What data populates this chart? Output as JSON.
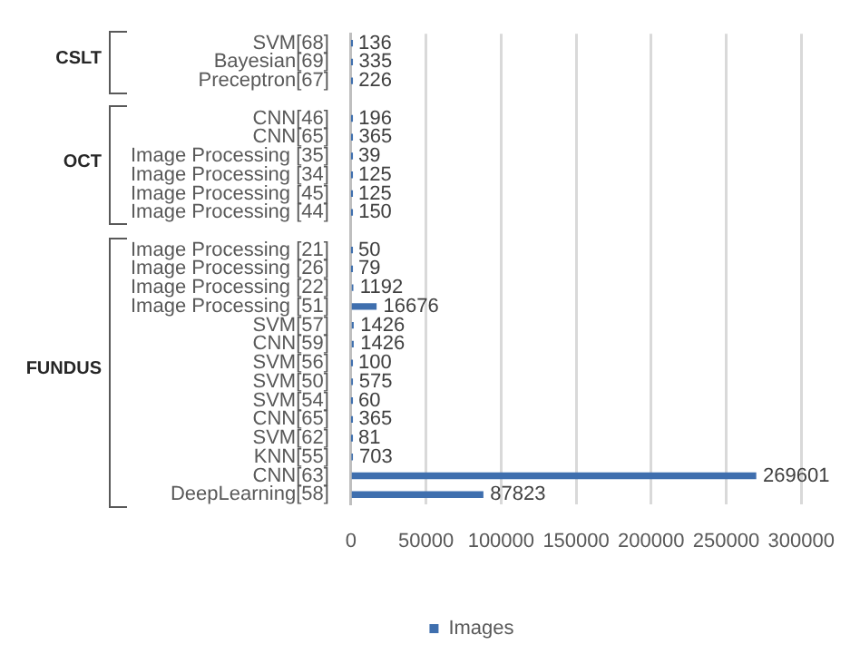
{
  "chart_data": {
    "type": "bar",
    "orientation": "horizontal",
    "categories": [
      "SVM[68]",
      "Bayesian[69]",
      "Preceptron[67]",
      null,
      "CNN[46]",
      "CNN[65]",
      "Image Processing [35]",
      "Image Processing [34]",
      "Image Processing [45]",
      "Image Processing [44]",
      null,
      "Image Processing [21]",
      "Image Processing [26]",
      "Image Processing [22]",
      "Image Processing [51]",
      "SVM[57]",
      "CNN[59]",
      "SVM[56]",
      "SVM[50]",
      "SVM[54]",
      "CNN[65]",
      "SVM[62]",
      "KNN[55]",
      "CNN[63]",
      "DeepLearning[58]"
    ],
    "series": [
      {
        "name": "Images",
        "color": "#3f6fae",
        "values": [
          136,
          335,
          226,
          null,
          196,
          365,
          39,
          125,
          125,
          150,
          null,
          50,
          79,
          1192,
          16676,
          1426,
          1426,
          100,
          575,
          60,
          365,
          81,
          703,
          269601,
          87823
        ]
      }
    ],
    "xlim": [
      0,
      300000
    ],
    "xticks": [
      0,
      50000,
      100000,
      150000,
      200000,
      250000,
      300000
    ],
    "grid": "x",
    "legend": "bottom",
    "data_labels": true,
    "annotations": [
      "CSLT",
      "OCT",
      "FUNDUS"
    ]
  }
}
